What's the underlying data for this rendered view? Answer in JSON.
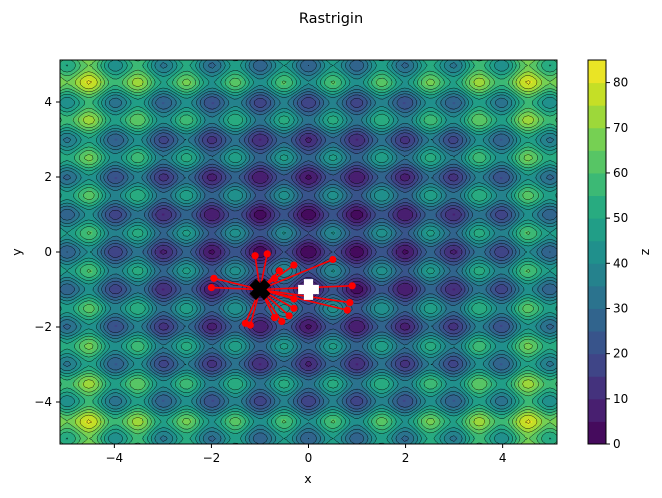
{
  "chart_data": {
    "type": "contour",
    "title": "Rastrigin",
    "xlabel": "x",
    "ylabel": "y",
    "colorbar_label": "z",
    "colormap": "viridis",
    "function": "rastrigin",
    "xlim": [
      -5.12,
      5.12
    ],
    "ylim": [
      -5.12,
      5.12
    ],
    "xticks": [
      -4,
      -2,
      0,
      2,
      4
    ],
    "yticks": [
      -4,
      -2,
      0,
      2,
      4
    ],
    "zlim": [
      0,
      85
    ],
    "level_step": 5,
    "colorbar_ticks": [
      0,
      10,
      20,
      30,
      40,
      50,
      60,
      70,
      80
    ],
    "optimizer_center": [
      -1,
      -1
    ],
    "optimizer_paths": [
      [
        [
          -1.1,
          -0.1
        ],
        [
          -1.0,
          -1.0
        ]
      ],
      [
        [
          -0.85,
          -0.05
        ],
        [
          -1.0,
          -1.0
        ]
      ],
      [
        [
          -2.0,
          -0.95
        ],
        [
          -1.0,
          -1.0
        ]
      ],
      [
        [
          -1.95,
          -0.7
        ],
        [
          -1.0,
          -1.0
        ]
      ],
      [
        [
          -1.3,
          -1.9
        ],
        [
          -1.0,
          -1.0
        ]
      ],
      [
        [
          -1.2,
          -1.95
        ],
        [
          -1.0,
          -1.0
        ]
      ],
      [
        [
          -0.7,
          -1.75
        ],
        [
          -1.0,
          -1.0
        ]
      ],
      [
        [
          -0.55,
          -1.85
        ],
        [
          -1.0,
          -1.0
        ]
      ],
      [
        [
          -0.4,
          -1.7
        ],
        [
          -1.0,
          -1.0
        ]
      ],
      [
        [
          -0.3,
          -1.5
        ],
        [
          -1.0,
          -1.0
        ]
      ],
      [
        [
          0.5,
          -0.2
        ],
        [
          -1.0,
          -1.0
        ]
      ],
      [
        [
          0.9,
          -0.9
        ],
        [
          -1.0,
          -1.0
        ]
      ],
      [
        [
          0.85,
          -1.35
        ],
        [
          -1.0,
          -1.0
        ]
      ],
      [
        [
          0.8,
          -1.55
        ],
        [
          -1.0,
          -1.0
        ]
      ],
      [
        [
          -0.3,
          -0.35
        ],
        [
          -1.0,
          -1.0
        ]
      ],
      [
        [
          -0.6,
          -0.5
        ],
        [
          -1.0,
          -1.0
        ]
      ],
      [
        [
          -0.7,
          -0.7
        ],
        [
          -1.0,
          -1.0
        ]
      ],
      [
        [
          -0.3,
          -1.25
        ],
        [
          -1.0,
          -1.0
        ]
      ]
    ],
    "best_point": [
      -1.0,
      -1.0
    ],
    "target_point": [
      0.0,
      -1.0
    ],
    "colors": {
      "path": "#ff0000",
      "best_marker": "#000000",
      "target_marker": "#ffffff"
    }
  }
}
